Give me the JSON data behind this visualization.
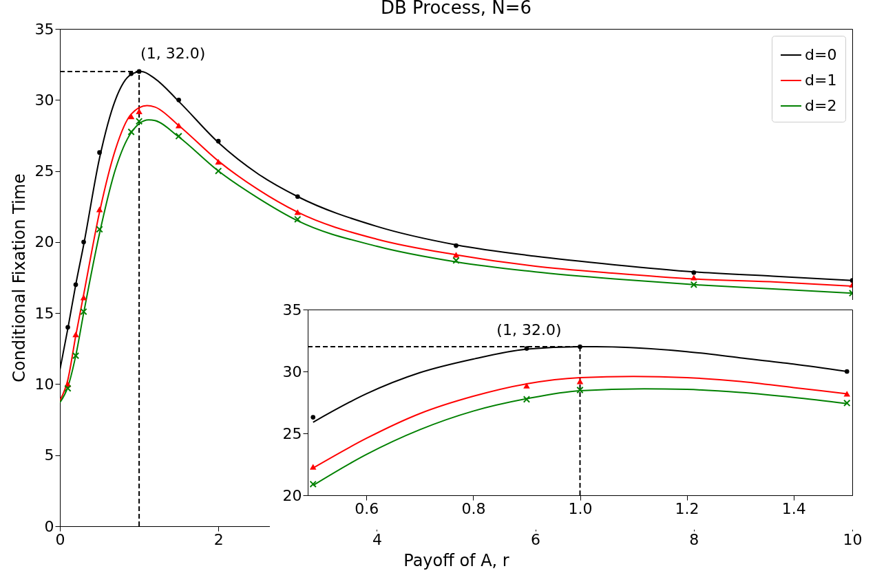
{
  "chart_data": [
    {
      "type": "line",
      "title": "DB Process, N=6",
      "xlabel": "Payoff of A, r",
      "ylabel": "Conditional Fixation Time",
      "xlim": [
        0,
        10
      ],
      "ylim": [
        0,
        35
      ],
      "xticks": [
        0,
        2,
        4,
        6,
        8,
        10
      ],
      "yticks": [
        0,
        5,
        10,
        15,
        20,
        25,
        30,
        35
      ],
      "legend": "top right",
      "annotations": [
        {
          "text": "(1, 32.0)",
          "x": 1,
          "y": 32
        }
      ],
      "series": [
        {
          "type": "line",
          "line_style": "dashed",
          "color": "#000000",
          "x": [
            0,
            1
          ],
          "values": [
            32,
            32
          ]
        },
        {
          "type": "line",
          "line_style": "dashed",
          "color": "#000000",
          "x": [
            1,
            1
          ],
          "values": [
            0,
            32
          ]
        },
        {
          "type": "line",
          "name": "d=0",
          "color": "#000000",
          "x": [
            0,
            0.1,
            0.2,
            0.3,
            0.5,
            0.7,
            0.9,
            1.03,
            1.2,
            1.5,
            2,
            2.5,
            3,
            4,
            5,
            6,
            7,
            8,
            9,
            10
          ],
          "values": [
            11.0,
            13.9,
            17.0,
            19.8,
            25.9,
            30.0,
            31.8,
            32.0,
            31.5,
            29.9,
            27.0,
            24.8,
            23.2,
            21.1,
            19.8,
            19.0,
            18.4,
            17.9,
            17.6,
            17.3
          ]
        },
        {
          "type": "line",
          "name": "d=1",
          "color": "#ff0000",
          "x": [
            0,
            0.1,
            0.2,
            0.3,
            0.5,
            0.7,
            0.9,
            1.1,
            1.2,
            1.5,
            2,
            2.5,
            3,
            4,
            5,
            6,
            7,
            8,
            9,
            10
          ],
          "values": [
            8.85,
            10.3,
            13.4,
            16.3,
            22.1,
            26.5,
            29.0,
            29.6,
            29.5,
            28.2,
            25.7,
            23.7,
            22.1,
            20.2,
            19.1,
            18.3,
            17.8,
            17.4,
            17.2,
            16.9
          ]
        },
        {
          "type": "line",
          "name": "d=2",
          "color": "#008000",
          "x": [
            0,
            0.1,
            0.2,
            0.3,
            0.5,
            0.7,
            0.9,
            1.12,
            1.2,
            1.5,
            2,
            2.5,
            3,
            4,
            5,
            6,
            7,
            8,
            9,
            10
          ],
          "values": [
            8.7,
            9.8,
            12.0,
            15.0,
            20.6,
            25.1,
            27.7,
            28.6,
            28.55,
            27.4,
            25.0,
            23.1,
            21.5,
            19.7,
            18.6,
            17.9,
            17.4,
            17.0,
            16.7,
            16.4
          ]
        },
        {
          "type": "scatter",
          "marker": "circle",
          "color": "#000000",
          "x": [
            0.1,
            0.2,
            0.3,
            0.5,
            0.9,
            1,
            1.5,
            2,
            3,
            5,
            8,
            10
          ],
          "values": [
            14.0,
            17.0,
            20.0,
            26.3,
            31.85,
            32.0,
            30.0,
            27.1,
            23.2,
            19.75,
            17.85,
            17.3
          ]
        },
        {
          "type": "scatter",
          "marker": "triangle",
          "color": "#ff0000",
          "x": [
            0.1,
            0.2,
            0.3,
            0.5,
            0.9,
            1,
            1.5,
            2,
            3,
            5,
            8,
            10
          ],
          "values": [
            10.0,
            13.5,
            16.1,
            22.3,
            28.85,
            29.2,
            28.2,
            25.65,
            22.1,
            19.1,
            17.5,
            17.0
          ]
        },
        {
          "type": "scatter",
          "marker": "cross",
          "color": "#008000",
          "x": [
            0.1,
            0.2,
            0.3,
            0.5,
            0.9,
            1,
            1.5,
            2,
            3,
            5,
            8,
            10
          ],
          "values": [
            9.7,
            12.0,
            15.1,
            20.9,
            27.75,
            28.5,
            27.45,
            25.0,
            21.6,
            18.7,
            17.0,
            16.4
          ]
        }
      ]
    },
    {
      "type": "line",
      "xlim": [
        0.49,
        1.51
      ],
      "ylim": [
        20,
        35
      ],
      "xticks": [
        0.6,
        0.8,
        {
          "value": 1,
          "label": "1.0"
        },
        1.2,
        1.4
      ],
      "yticks": [
        20,
        25,
        30,
        35
      ],
      "annotations": [
        {
          "text": "(1, 32.0)",
          "x": 1,
          "y": 32
        }
      ],
      "series": [
        {
          "type": "line",
          "line_style": "dashed",
          "color": "#000000",
          "x": [
            0.49,
            1
          ],
          "values": [
            32,
            32
          ]
        },
        {
          "type": "line",
          "line_style": "dashed",
          "color": "#000000",
          "x": [
            1,
            1
          ],
          "values": [
            20,
            32
          ]
        },
        {
          "type": "line",
          "color": "#000000",
          "x": [
            0.5,
            0.6,
            0.7,
            0.8,
            0.9,
            1.0,
            1.03,
            1.2,
            1.3,
            1.4,
            1.5
          ],
          "values": [
            25.9,
            28.2,
            29.9,
            31.0,
            31.8,
            32.0,
            32.0,
            31.6,
            31.1,
            30.6,
            30.0
          ]
        },
        {
          "type": "line",
          "color": "#ff0000",
          "x": [
            0.5,
            0.6,
            0.7,
            0.8,
            0.9,
            1.0,
            1.1,
            1.2,
            1.3,
            1.4,
            1.5
          ],
          "values": [
            22.2,
            24.6,
            26.6,
            28.0,
            29.0,
            29.5,
            29.6,
            29.5,
            29.2,
            28.7,
            28.2
          ]
        },
        {
          "type": "line",
          "color": "#008000",
          "x": [
            0.5,
            0.6,
            0.7,
            0.8,
            0.9,
            1.0,
            1.12,
            1.2,
            1.3,
            1.4,
            1.5
          ],
          "values": [
            20.8,
            23.3,
            25.3,
            26.8,
            27.8,
            28.45,
            28.6,
            28.55,
            28.3,
            27.9,
            27.4
          ]
        },
        {
          "type": "scatter",
          "marker": "circle",
          "color": "#000000",
          "x": [
            0.5,
            0.9,
            1,
            1.5
          ],
          "values": [
            26.3,
            31.85,
            32.0,
            30.0
          ]
        },
        {
          "type": "scatter",
          "marker": "triangle",
          "color": "#ff0000",
          "x": [
            0.5,
            0.9,
            1,
            1.5
          ],
          "values": [
            22.3,
            28.85,
            29.2,
            28.2
          ]
        },
        {
          "type": "scatter",
          "marker": "cross",
          "color": "#008000",
          "x": [
            0.5,
            0.9,
            1,
            1.5
          ],
          "values": [
            20.9,
            27.75,
            28.5,
            27.45
          ]
        }
      ]
    }
  ]
}
